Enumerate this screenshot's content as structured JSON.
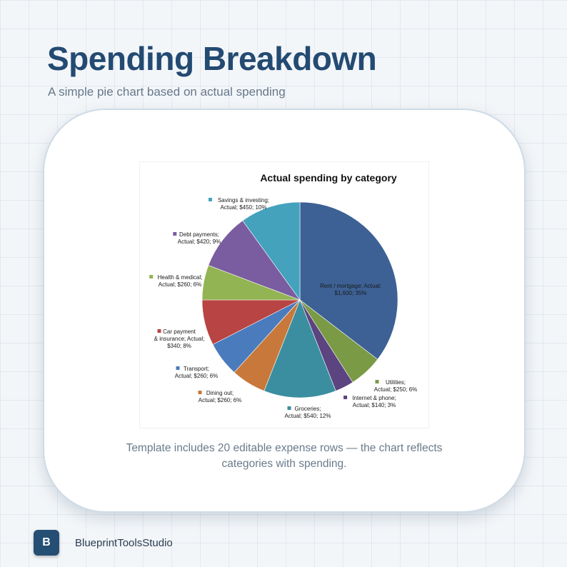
{
  "header": {
    "title": "Spending Breakdown",
    "subtitle": "A simple pie chart based on actual spending"
  },
  "card": {
    "caption_line1": "Template includes 20 editable expense rows — the chart reflects",
    "caption_line2": "categories with spending."
  },
  "footer": {
    "logo_letter": "B",
    "brand": "BlueprintToolsStudio"
  },
  "chart_data": {
    "type": "pie",
    "title": "Actual spending by category",
    "legend": "none",
    "slices": [
      {
        "label": "Rent / mortgage; Actual; $1,600; 35%",
        "value": 1600,
        "percent": 35,
        "color": "#3d6195"
      },
      {
        "label": "Utilities; Actual; $250; 6%",
        "value": 250,
        "percent": 6,
        "color": "#7a9a46"
      },
      {
        "label": "Internet & phone; Actual; $140; 3%",
        "value": 140,
        "percent": 3,
        "color": "#5b4480"
      },
      {
        "label": "Groceries; Actual; $540; 12%",
        "value": 540,
        "percent": 12,
        "color": "#3a8ea0"
      },
      {
        "label": "Dining out; Actual; $260; 6%",
        "value": 260,
        "percent": 6,
        "color": "#c8783a"
      },
      {
        "label": "Transport; Actual; $260; 6%",
        "value": 260,
        "percent": 6,
        "color": "#4a7cbd"
      },
      {
        "label": "Car payment & insurance; Actual; $340; 8%",
        "value": 340,
        "percent": 8,
        "color": "#b84444"
      },
      {
        "label": "Health & medical; Actual; $260; 6%",
        "value": 260,
        "percent": 6,
        "color": "#92b452"
      },
      {
        "label": "Debt payments; Actual; $420; 9%",
        "value": 420,
        "percent": 9,
        "color": "#7a5ca0"
      },
      {
        "label": "Savings & investing; Actual; $450; 10%",
        "value": 450,
        "percent": 10,
        "color": "#44a2bd"
      }
    ]
  }
}
